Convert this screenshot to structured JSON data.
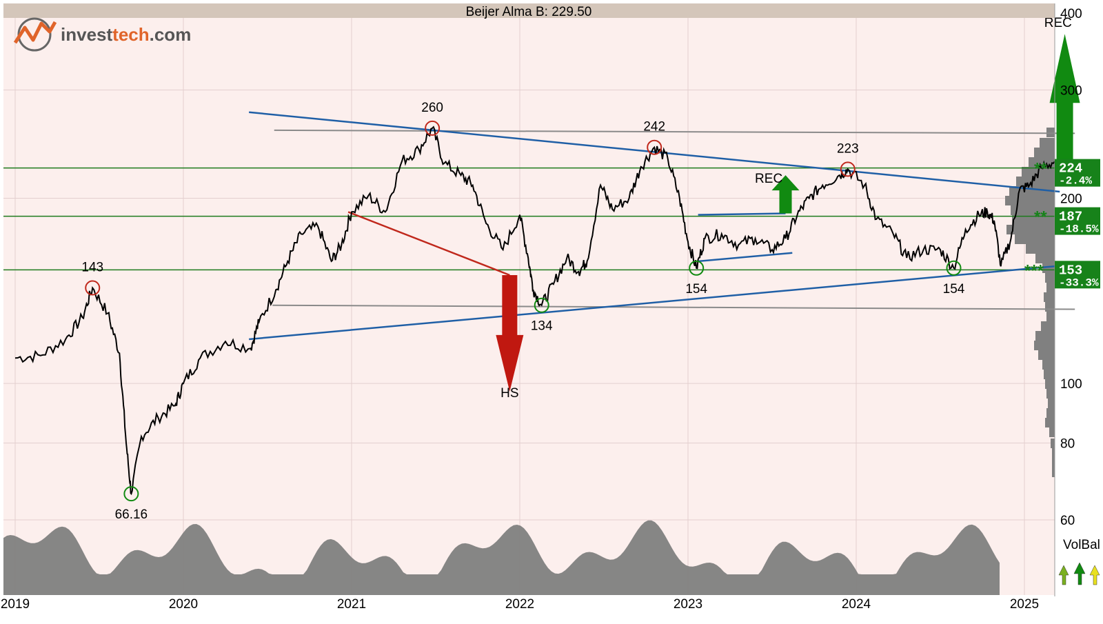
{
  "title": "Beijer Alma B: 229.50",
  "logo": {
    "text_a": "invest",
    "text_b": "tech",
    "text_c": ".com"
  },
  "colors": {
    "background": "#fcefed",
    "title_bar": "#d4c6ba",
    "support_line": "#1c7a1c",
    "trend_line": "#1f5fa6",
    "red_line": "#c0281c",
    "gray_line": "#8a8a8a",
    "buy_arrow": "#118a11",
    "sell_arrow": "#c01810",
    "volume": "#808080",
    "badge": "#17821a"
  },
  "chart_data": {
    "type": "line",
    "title": "Beijer Alma B: 229.50",
    "x_ticks": [
      "2019",
      "2020",
      "2021",
      "2022",
      "2023",
      "2024",
      "2025"
    ],
    "y_ticks": [
      400,
      300,
      200,
      100,
      80,
      60
    ],
    "y_scale": "log",
    "ylim": [
      49,
      420
    ],
    "grid": true,
    "series": [
      {
        "values": [
          [
            2019.0,
            110
          ],
          [
            2019.15,
            111
          ],
          [
            2019.3,
            118
          ],
          [
            2019.4,
            128
          ],
          [
            2019.46,
            143
          ],
          [
            2019.55,
            130
          ],
          [
            2019.62,
            112
          ],
          [
            2019.66,
            80
          ],
          [
            2019.69,
            66.16
          ],
          [
            2019.75,
            82
          ],
          [
            2019.85,
            88
          ],
          [
            2019.95,
            92
          ],
          [
            2020.0,
            100
          ],
          [
            2020.1,
            110
          ],
          [
            2020.25,
            117
          ],
          [
            2020.4,
            114
          ],
          [
            2020.45,
            126
          ],
          [
            2020.55,
            142
          ],
          [
            2020.62,
            158
          ],
          [
            2020.7,
            175
          ],
          [
            2020.8,
            180
          ],
          [
            2020.88,
            158
          ],
          [
            2020.94,
            168
          ],
          [
            2021.0,
            190
          ],
          [
            2021.1,
            202
          ],
          [
            2021.2,
            190
          ],
          [
            2021.3,
            230
          ],
          [
            2021.4,
            240
          ],
          [
            2021.48,
            260
          ],
          [
            2021.55,
            228
          ],
          [
            2021.65,
            218
          ],
          [
            2021.72,
            210
          ],
          [
            2021.8,
            182
          ],
          [
            2021.9,
            165
          ],
          [
            2022.0,
            188
          ],
          [
            2022.05,
            160
          ],
          [
            2022.08,
            142
          ],
          [
            2022.13,
            134
          ],
          [
            2022.2,
            145
          ],
          [
            2022.28,
            160
          ],
          [
            2022.35,
            152
          ],
          [
            2022.4,
            158
          ],
          [
            2022.48,
            210
          ],
          [
            2022.55,
            192
          ],
          [
            2022.65,
            200
          ],
          [
            2022.72,
            225
          ],
          [
            2022.8,
            242
          ],
          [
            2022.88,
            232
          ],
          [
            2022.95,
            200
          ],
          [
            2023.0,
            170
          ],
          [
            2023.05,
            154
          ],
          [
            2023.1,
            172
          ],
          [
            2023.2,
            175
          ],
          [
            2023.3,
            168
          ],
          [
            2023.4,
            172
          ],
          [
            2023.5,
            165
          ],
          [
            2023.58,
            172
          ],
          [
            2023.65,
            188
          ],
          [
            2023.72,
            200
          ],
          [
            2023.8,
            210
          ],
          [
            2023.9,
            218
          ],
          [
            2023.95,
            223
          ],
          [
            2024.05,
            210
          ],
          [
            2024.12,
            185
          ],
          [
            2024.22,
            175
          ],
          [
            2024.3,
            160
          ],
          [
            2024.4,
            165
          ],
          [
            2024.5,
            165
          ],
          [
            2024.58,
            154
          ],
          [
            2024.65,
            178
          ],
          [
            2024.73,
            188
          ],
          [
            2024.78,
            190
          ],
          [
            2024.82,
            184
          ],
          [
            2024.86,
            155
          ],
          [
            2024.92,
            172
          ],
          [
            2024.97,
            206
          ],
          [
            2025.03,
            210
          ],
          [
            2025.1,
            224
          ],
          [
            2025.18,
            229.5
          ]
        ]
      }
    ],
    "point_labels": [
      {
        "x": 2019.46,
        "y": 143,
        "text": "143",
        "kind": "peak"
      },
      {
        "x": 2019.69,
        "y": 66.16,
        "text": "66.16",
        "kind": "trough"
      },
      {
        "x": 2021.48,
        "y": 260,
        "text": "260",
        "kind": "peak"
      },
      {
        "x": 2022.13,
        "y": 134,
        "text": "134",
        "kind": "trough"
      },
      {
        "x": 2022.8,
        "y": 242,
        "text": "242",
        "kind": "peak"
      },
      {
        "x": 2023.05,
        "y": 154,
        "text": "154",
        "kind": "trough"
      },
      {
        "x": 2023.95,
        "y": 223,
        "text": "223",
        "kind": "peak"
      },
      {
        "x": 2024.58,
        "y": 154,
        "text": "154",
        "kind": "trough"
      }
    ],
    "pattern_labels": [
      {
        "text": "REC",
        "x": 2025.2,
        "y": 380
      },
      {
        "text": "REC",
        "x": 2023.48,
        "y": 212
      },
      {
        "text": "HS",
        "x": 2021.94,
        "y": 95
      }
    ],
    "support_levels": [
      {
        "value": 224,
        "stars": "**",
        "label": "224",
        "pct": "-2.4%"
      },
      {
        "value": 187,
        "stars": "**",
        "label": "187",
        "pct": "-18.5%"
      },
      {
        "value": 153,
        "stars": "***",
        "label": "153",
        "pct": "-33.3%"
      }
    ],
    "volume_panel_label": "VolBal"
  }
}
